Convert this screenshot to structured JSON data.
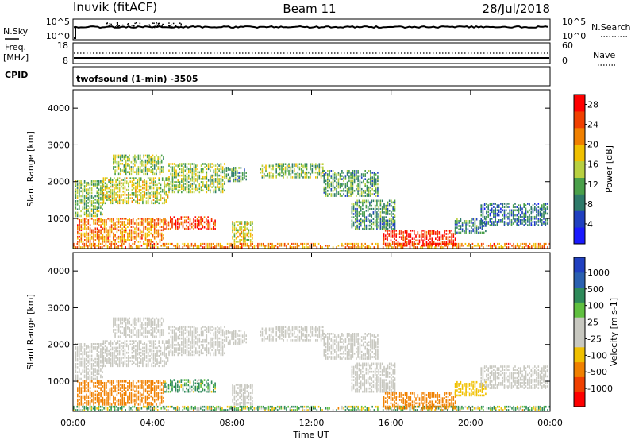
{
  "header": {
    "station": "Inuvik (fitACF)",
    "beam": "Beam 11",
    "date": "28/Jul/2018"
  },
  "noise_panel": {
    "left_label": "N.Sky",
    "right_label": "N.Search",
    "left_ticks": [
      "10^5",
      "10^0"
    ],
    "right_ticks": [
      "10^5",
      "10^0"
    ]
  },
  "freq_panel": {
    "left_label_1": "Freq.",
    "left_label_2": "[MHz]",
    "right_label": "Nave",
    "left_ticks": [
      "18",
      "8"
    ],
    "right_ticks": [
      "60",
      "0"
    ]
  },
  "cpid_panel": {
    "label": "CPID",
    "text": "twofsound (1-min) -3505"
  },
  "colors": {
    "power_scale": [
      "#1a1aff",
      "#2040c0",
      "#2e7a6a",
      "#4aa04a",
      "#b8d040",
      "#f0c000",
      "#f08000",
      "#f04000",
      "#ff0000"
    ],
    "velocity_scale": [
      "#ff0000",
      "#f04000",
      "#f08000",
      "#f0c000",
      "#c8c8c0",
      "#c8c8c0",
      "#60c040",
      "#2e8a5a",
      "#2a60b0",
      "#2040c0"
    ],
    "ground_scatter": "#c8c8c0"
  },
  "chart_data": [
    {
      "type": "heatmap",
      "title": "",
      "xlabel": "",
      "ylabel": "Slant Range [km]",
      "x_ticks": [
        "00:00",
        "04:00",
        "08:00",
        "12:00",
        "16:00",
        "20:00",
        "00:00"
      ],
      "xlim_hours": [
        0,
        24
      ],
      "ylim_km": [
        180,
        4500
      ],
      "y_ticks": [
        "1000",
        "2000",
        "3000",
        "4000"
      ],
      "colorbar_label": "Power [dB]",
      "colorbar_ticks": [
        "4",
        "8",
        "12",
        "16",
        "20",
        "24",
        "28"
      ],
      "colorbar_range": [
        0,
        30
      ],
      "scatter_regions": [
        {
          "t0": 0.0,
          "t1": 24.0,
          "r0": 200,
          "r1": 330,
          "value": 22
        },
        {
          "t0": 0.1,
          "t1": 1.5,
          "r0": 1050,
          "r1": 2000,
          "value": 13
        },
        {
          "t0": 1.5,
          "t1": 4.8,
          "r0": 1400,
          "r1": 2100,
          "value": 16
        },
        {
          "t0": 2.0,
          "t1": 4.6,
          "r0": 2200,
          "r1": 2700,
          "value": 14
        },
        {
          "t0": 4.8,
          "t1": 7.6,
          "r0": 1700,
          "r1": 2500,
          "value": 14
        },
        {
          "t0": 0.2,
          "t1": 4.6,
          "r0": 350,
          "r1": 1000,
          "value": 22
        },
        {
          "t0": 4.6,
          "t1": 7.2,
          "r0": 700,
          "r1": 1050,
          "value": 25
        },
        {
          "t0": 7.6,
          "t1": 8.7,
          "r0": 2000,
          "r1": 2400,
          "value": 11
        },
        {
          "t0": 8.0,
          "t1": 9.0,
          "r0": 350,
          "r1": 900,
          "value": 16
        },
        {
          "t0": 9.4,
          "t1": 10.1,
          "r0": 2100,
          "r1": 2450,
          "value": 14
        },
        {
          "t0": 10.2,
          "t1": 12.6,
          "r0": 2100,
          "r1": 2500,
          "value": 13
        },
        {
          "t0": 12.6,
          "t1": 15.3,
          "r0": 1600,
          "r1": 2300,
          "value": 11
        },
        {
          "t0": 14.0,
          "t1": 16.2,
          "r0": 700,
          "r1": 1500,
          "value": 10
        },
        {
          "t0": 15.6,
          "t1": 19.2,
          "r0": 250,
          "r1": 700,
          "value": 27
        },
        {
          "t0": 19.2,
          "t1": 20.8,
          "r0": 600,
          "r1": 1000,
          "value": 9
        },
        {
          "t0": 20.5,
          "t1": 23.9,
          "r0": 800,
          "r1": 1400,
          "value": 8
        }
      ]
    },
    {
      "type": "heatmap",
      "title": "",
      "xlabel": "Time UT",
      "ylabel": "Slant Range [km]",
      "x_ticks": [
        "00:00",
        "04:00",
        "08:00",
        "12:00",
        "16:00",
        "20:00",
        "00:00"
      ],
      "xlim_hours": [
        0,
        24
      ],
      "ylim_km": [
        180,
        4500
      ],
      "y_ticks": [
        "1000",
        "2000",
        "3000",
        "4000"
      ],
      "colorbar_label": "Velocity [m s-1]",
      "colorbar_ticks": [
        "1000",
        "500",
        "100",
        "25",
        "-25",
        "-100",
        "-500",
        "-1000"
      ],
      "colorbar_range": [
        -1000,
        1000
      ],
      "scatter_regions": [
        {
          "t0": 0.0,
          "t1": 24.0,
          "r0": 200,
          "r1": 330,
          "value": 90
        },
        {
          "t0": 0.1,
          "t1": 1.5,
          "r0": 1050,
          "r1": 2000,
          "value": 0
        },
        {
          "t0": 1.5,
          "t1": 4.8,
          "r0": 1400,
          "r1": 2100,
          "value": 0
        },
        {
          "t0": 2.0,
          "t1": 4.6,
          "r0": 2200,
          "r1": 2700,
          "value": 0
        },
        {
          "t0": 4.8,
          "t1": 7.6,
          "r0": 1700,
          "r1": 2500,
          "value": 0
        },
        {
          "t0": 0.2,
          "t1": 4.6,
          "r0": 350,
          "r1": 1000,
          "value": -300
        },
        {
          "t0": 4.6,
          "t1": 7.2,
          "r0": 700,
          "r1": 1050,
          "value": 150
        },
        {
          "t0": 7.6,
          "t1": 8.7,
          "r0": 2000,
          "r1": 2400,
          "value": 0
        },
        {
          "t0": 8.0,
          "t1": 9.0,
          "r0": 350,
          "r1": 900,
          "value": 0
        },
        {
          "t0": 9.4,
          "t1": 10.1,
          "r0": 2100,
          "r1": 2450,
          "value": 0
        },
        {
          "t0": 10.2,
          "t1": 12.6,
          "r0": 2100,
          "r1": 2500,
          "value": 0
        },
        {
          "t0": 12.6,
          "t1": 15.3,
          "r0": 1600,
          "r1": 2300,
          "value": 0
        },
        {
          "t0": 14.0,
          "t1": 16.2,
          "r0": 700,
          "r1": 1500,
          "value": 0
        },
        {
          "t0": 15.6,
          "t1": 19.2,
          "r0": 250,
          "r1": 700,
          "value": -300
        },
        {
          "t0": 19.2,
          "t1": 20.8,
          "r0": 600,
          "r1": 1000,
          "value": -50
        },
        {
          "t0": 20.5,
          "t1": 23.9,
          "r0": 800,
          "r1": 1400,
          "value": 0
        }
      ]
    }
  ]
}
